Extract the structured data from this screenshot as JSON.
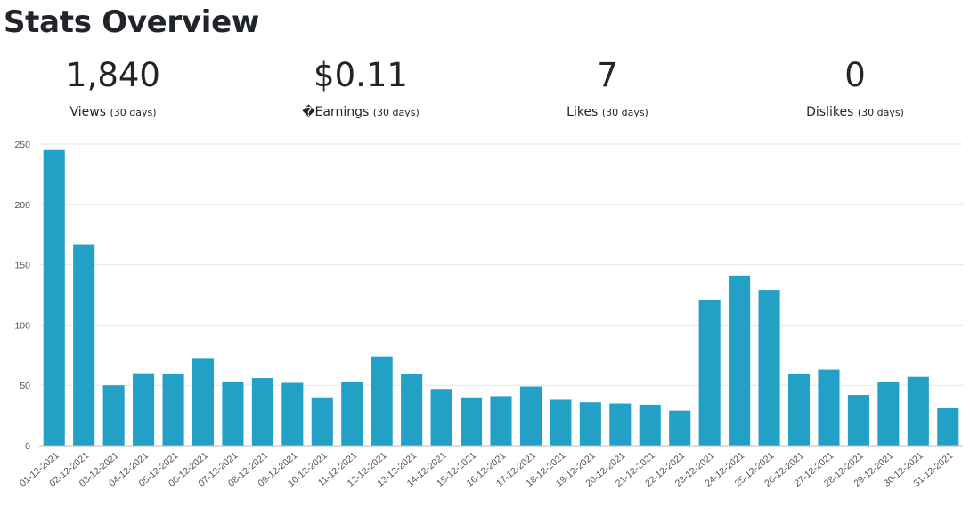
{
  "header": {
    "title": "Stats Overview"
  },
  "stats": [
    {
      "value": "1,840",
      "label": "Views",
      "suffix": "(30 days)"
    },
    {
      "value": "$0.11",
      "label": "�Earnings",
      "suffix": "(30 days)"
    },
    {
      "value": "7",
      "label": "Likes",
      "suffix": "(30 days)"
    },
    {
      "value": "0",
      "label": "Dislikes",
      "suffix": "(30 days)"
    }
  ],
  "colors": {
    "bar": "#23a0c6",
    "grid": "#e6e6e6",
    "axis": "#bdbdbd"
  },
  "chart_data": {
    "type": "bar",
    "categories": [
      "01-12-2021",
      "02-12-2021",
      "03-12-2021",
      "04-12-2021",
      "05-12-2021",
      "06-12-2021",
      "07-12-2021",
      "08-12-2021",
      "09-12-2021",
      "10-12-2021",
      "11-12-2021",
      "12-12-2021",
      "13-12-2021",
      "14-12-2021",
      "15-12-2021",
      "16-12-2021",
      "17-12-2021",
      "18-12-2021",
      "19-12-2021",
      "20-12-2021",
      "21-12-2021",
      "22-12-2021",
      "23-12-2021",
      "24-12-2021",
      "25-12-2021",
      "26-12-2021",
      "27-12-2021",
      "28-12-2021",
      "29-12-2021",
      "30-12-2021",
      "31-12-2021"
    ],
    "values": [
      245,
      167,
      50,
      60,
      59,
      72,
      53,
      56,
      52,
      40,
      53,
      74,
      59,
      47,
      40,
      41,
      49,
      38,
      36,
      35,
      34,
      29,
      121,
      141,
      129,
      59,
      63,
      42,
      53,
      57,
      31
    ],
    "yticks": [
      0,
      50,
      100,
      150,
      200,
      250
    ],
    "ylim": [
      0,
      250
    ],
    "grid": true,
    "legend": "none"
  }
}
